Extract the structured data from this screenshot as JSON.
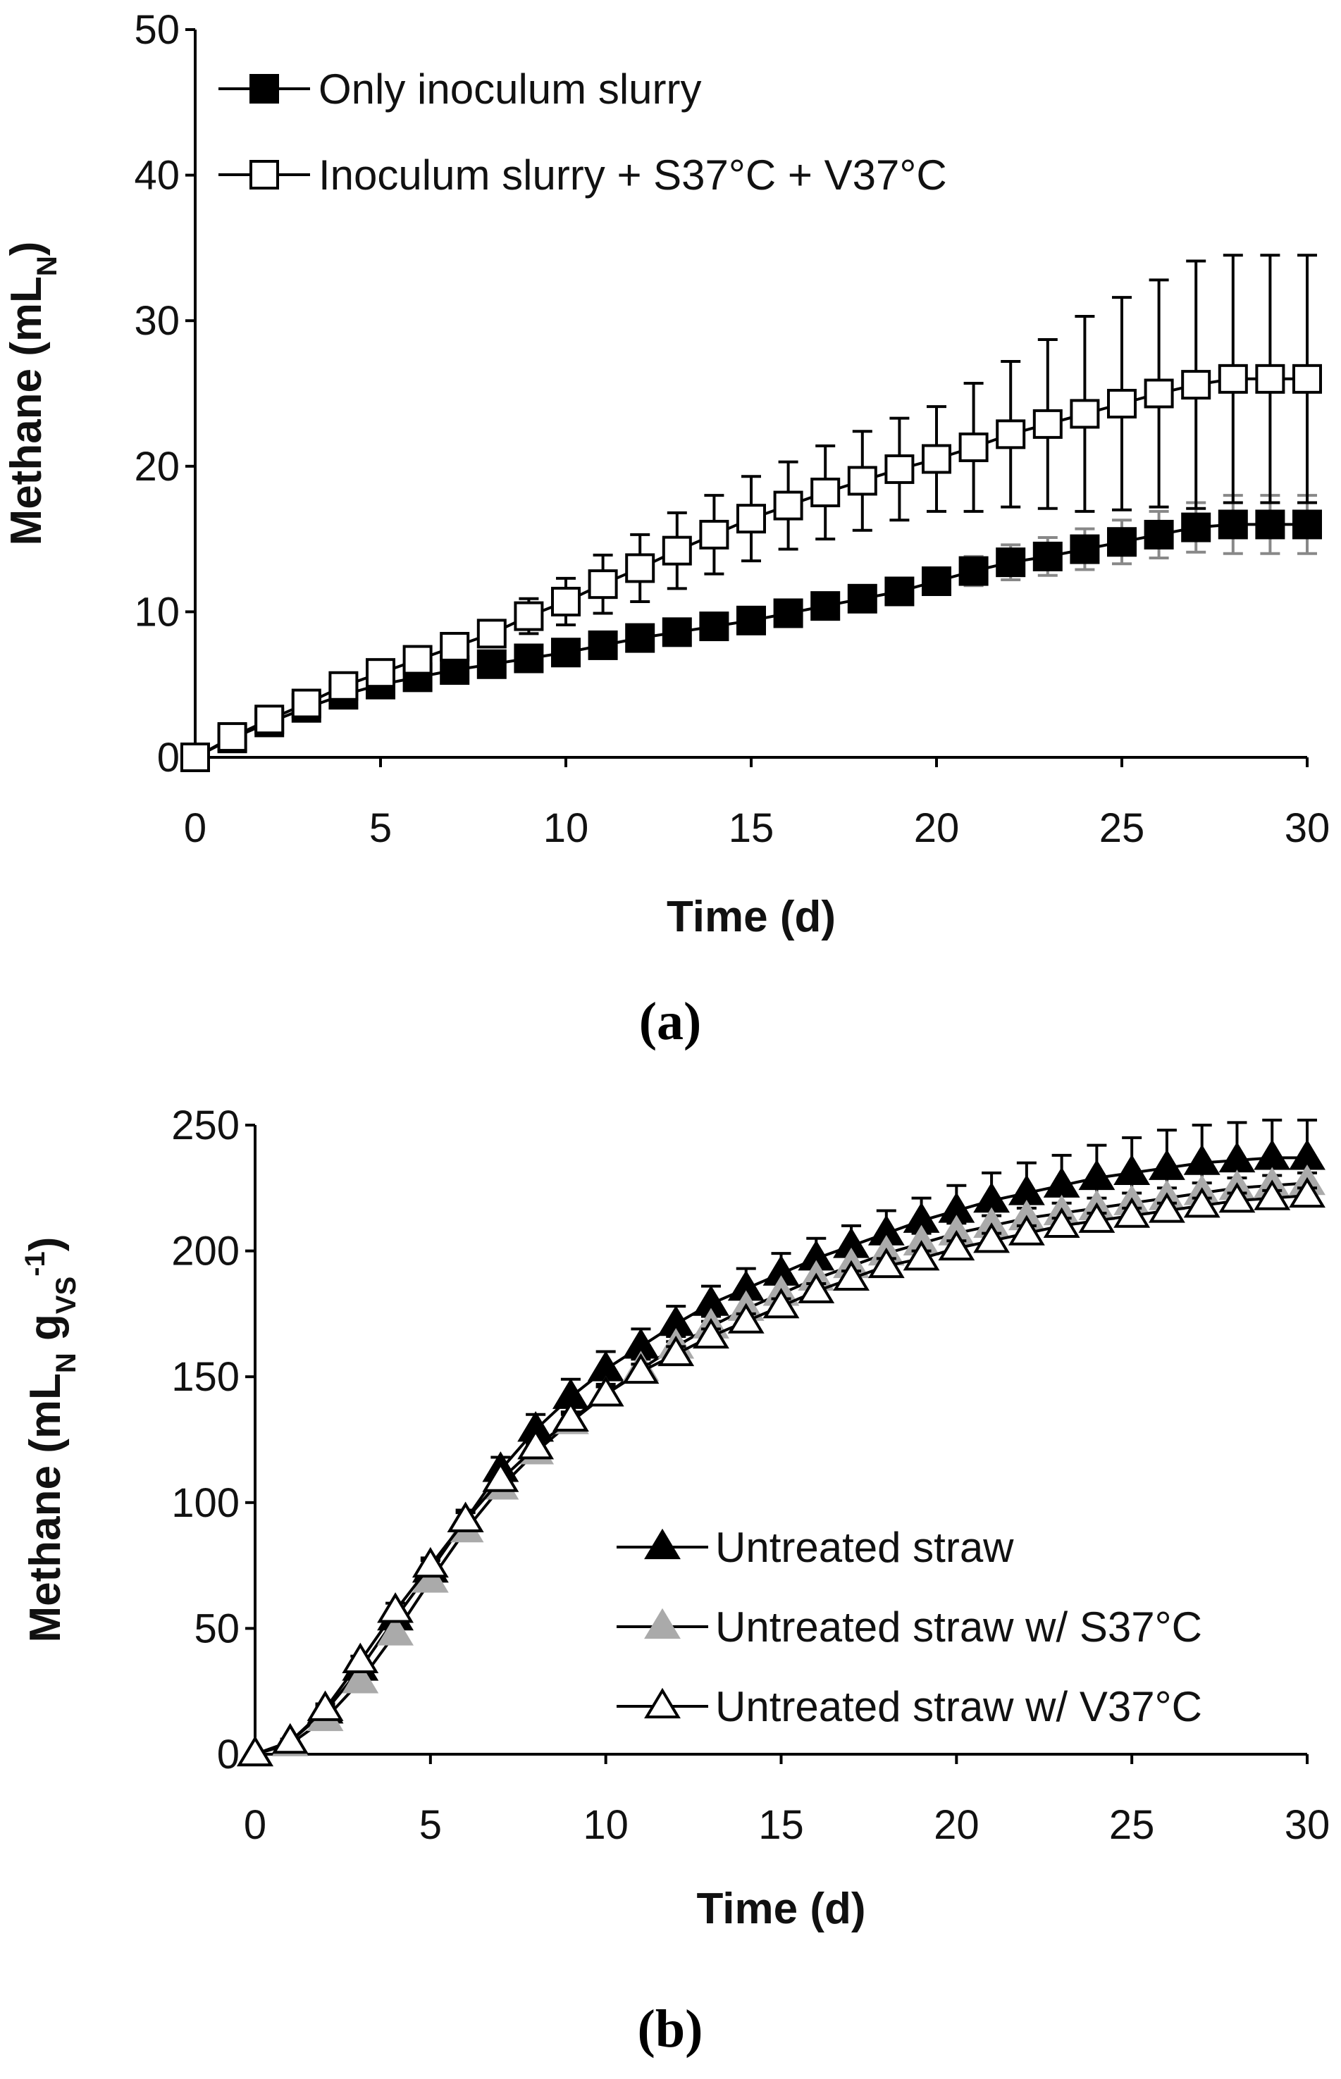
{
  "chart_data": [
    {
      "panel_label": "(a)",
      "type": "line",
      "title": "",
      "xlabel": "Time (d)",
      "ylabel": "Methane (mL",
      "ylabel_sub": "N",
      "ylabel_end": ")",
      "xlim": [
        0,
        30
      ],
      "ylim": [
        0,
        50
      ],
      "xticks": [
        "0",
        "5",
        "10",
        "15",
        "20",
        "25",
        "30"
      ],
      "yticks": [
        "0",
        "10",
        "20",
        "30",
        "40",
        "50"
      ],
      "legend_position": "top-left",
      "x": [
        0,
        1,
        2,
        3,
        4,
        5,
        6,
        7,
        8,
        9,
        10,
        11,
        12,
        13,
        14,
        15,
        16,
        17,
        18,
        19,
        20,
        21,
        22,
        23,
        24,
        25,
        26,
        27,
        28,
        29,
        30
      ],
      "series": [
        {
          "name": "Only inoculum slurry",
          "marker": "square-filled",
          "color": "#000000",
          "fill": "#000000",
          "err_color": "#888888",
          "values": [
            0,
            1.3,
            2.4,
            3.4,
            4.3,
            5.0,
            5.5,
            6.0,
            6.4,
            6.8,
            7.2,
            7.7,
            8.2,
            8.6,
            9.0,
            9.4,
            9.9,
            10.4,
            10.9,
            11.4,
            12.1,
            12.8,
            13.4,
            13.8,
            14.3,
            14.8,
            15.3,
            15.8,
            16.0,
            16.0,
            16.0
          ],
          "err": [
            0,
            0.2,
            0.2,
            0.3,
            0.3,
            0.3,
            0.3,
            0.3,
            0.3,
            0.3,
            0.3,
            0.3,
            0.3,
            0.3,
            0.3,
            0.3,
            0.4,
            0.4,
            0.5,
            0.6,
            0.8,
            1.0,
            1.2,
            1.3,
            1.4,
            1.5,
            1.6,
            1.7,
            2.0,
            2.0,
            2.0
          ]
        },
        {
          "name": "Inoculum slurry + S37°C + V37°C",
          "marker": "square-open",
          "color": "#000000",
          "fill": "#ffffff",
          "err_color": "#000000",
          "values": [
            0,
            1.4,
            2.6,
            3.7,
            4.9,
            5.8,
            6.7,
            7.6,
            8.5,
            9.7,
            10.7,
            11.9,
            13.0,
            14.2,
            15.3,
            16.4,
            17.3,
            18.2,
            19.0,
            19.8,
            20.5,
            21.3,
            22.2,
            22.9,
            23.6,
            24.3,
            25.0,
            25.6,
            26.0,
            26.0,
            26.0
          ],
          "err": [
            0,
            0.2,
            0.2,
            0.3,
            0.3,
            0.4,
            0.4,
            0.5,
            0.6,
            1.2,
            1.6,
            2.0,
            2.3,
            2.6,
            2.7,
            2.9,
            3.0,
            3.2,
            3.4,
            3.5,
            3.6,
            4.4,
            5.0,
            5.8,
            6.7,
            7.3,
            7.8,
            8.5,
            8.5,
            8.5,
            8.5
          ]
        }
      ]
    },
    {
      "panel_label": "(b)",
      "type": "line",
      "title": "",
      "xlabel": "Time (d)",
      "ylabel": "Methane (mL",
      "ylabel_sub": "N",
      "ylabel_mid": " g",
      "ylabel_sub2": "VS",
      "ylabel_sup": "-1",
      "ylabel_end": ")",
      "xlim": [
        0,
        30
      ],
      "ylim": [
        0,
        250
      ],
      "xticks": [
        "0",
        "5",
        "10",
        "15",
        "20",
        "25",
        "30"
      ],
      "yticks": [
        "0",
        "50",
        "100",
        "150",
        "200",
        "250"
      ],
      "legend_position": "bottom-right",
      "x": [
        0,
        1,
        2,
        3,
        4,
        5,
        6,
        7,
        8,
        9,
        10,
        11,
        12,
        13,
        14,
        15,
        16,
        17,
        18,
        19,
        20,
        21,
        22,
        23,
        24,
        25,
        26,
        27,
        28,
        29,
        30
      ],
      "series": [
        {
          "name": "Untreated straw",
          "marker": "triangle-filled",
          "color": "#000000",
          "fill": "#000000",
          "err_color": "#000000",
          "values": [
            0,
            5,
            17,
            34,
            54,
            73,
            93,
            113,
            129,
            142,
            153,
            162,
            171,
            179,
            185,
            191,
            197,
            202,
            207,
            212,
            216,
            220,
            223,
            226,
            229,
            231,
            233,
            235,
            236,
            237,
            237
          ],
          "err": [
            0,
            1,
            2,
            3,
            3,
            4,
            4,
            5,
            6,
            7,
            7,
            7,
            7,
            7,
            8,
            8,
            8,
            8,
            9,
            9,
            10,
            11,
            12,
            12,
            13,
            14,
            15,
            15,
            15,
            15,
            15
          ]
        },
        {
          "name": "Untreated straw w/ S37°C",
          "marker": "triangle-filled",
          "color": "#000000",
          "fill": "#aaaaaa",
          "err_color": "#000000",
          "values": [
            0,
            4,
            14,
            29,
            48,
            69,
            89,
            106,
            120,
            132,
            143,
            153,
            162,
            170,
            177,
            183,
            189,
            194,
            199,
            203,
            207,
            210,
            213,
            215,
            217,
            219,
            221,
            223,
            225,
            226,
            227
          ],
          "err": [
            0,
            1,
            2,
            3,
            3,
            3,
            4,
            4,
            4,
            4,
            4,
            4,
            4,
            4,
            4,
            4,
            4,
            4,
            4,
            4,
            4,
            4,
            4,
            4,
            4,
            4,
            4,
            4,
            4,
            4,
            4
          ]
        },
        {
          "name": "Untreated straw w/ V37°C",
          "marker": "triangle-open",
          "color": "#000000",
          "fill": "#ffffff",
          "err_color": "#000000",
          "values": [
            0,
            5,
            18,
            37,
            57,
            75,
            93,
            109,
            122,
            133,
            143,
            152,
            159,
            166,
            172,
            178,
            184,
            189,
            194,
            197,
            201,
            204,
            207,
            210,
            212,
            214,
            216,
            218,
            220,
            221,
            222
          ],
          "err": [
            0,
            1,
            2,
            2,
            3,
            3,
            3,
            3,
            3,
            3,
            3,
            3,
            3,
            3,
            3,
            3,
            3,
            3,
            3,
            3,
            3,
            3,
            3,
            3,
            3,
            3,
            3,
            3,
            3,
            3,
            3
          ]
        }
      ]
    }
  ]
}
